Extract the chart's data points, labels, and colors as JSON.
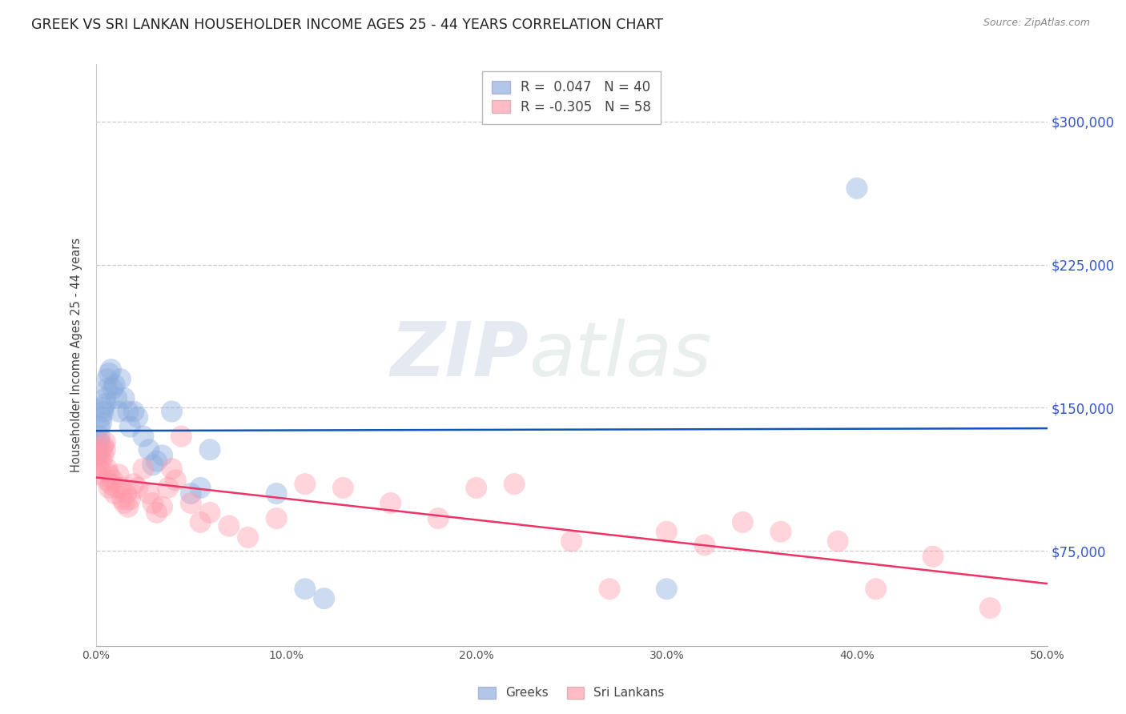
{
  "title": "GREEK VS SRI LANKAN HOUSEHOLDER INCOME AGES 25 - 44 YEARS CORRELATION CHART",
  "source": "Source: ZipAtlas.com",
  "ylabel": "Householder Income Ages 25 - 44 years",
  "xmin": 0.0,
  "xmax": 0.5,
  "ymin": 25000,
  "ymax": 330000,
  "yticks": [
    75000,
    150000,
    225000,
    300000
  ],
  "ytick_labels": [
    "$75,000",
    "$150,000",
    "$225,000",
    "$300,000"
  ],
  "xtick_positions": [
    0.0,
    0.1,
    0.2,
    0.3,
    0.4,
    0.5
  ],
  "xtick_labels": [
    "0.0%",
    "10.0%",
    "20.0%",
    "30.0%",
    "40.0%",
    "50.0%"
  ],
  "background_color": "#ffffff",
  "grid_color": "#cccccc",
  "legend_r1": "R =  0.047   N = 40",
  "legend_r2": "R = -0.305   N = 58",
  "greek_color": "#88aadd",
  "sri_lankan_color": "#ff99aa",
  "blue_line_color": "#1155bb",
  "pink_line_color": "#ee3366",
  "greek_x": [
    0.001,
    0.001,
    0.001,
    0.002,
    0.002,
    0.002,
    0.003,
    0.003,
    0.004,
    0.004,
    0.005,
    0.005,
    0.006,
    0.006,
    0.007,
    0.008,
    0.009,
    0.01,
    0.011,
    0.012,
    0.013,
    0.015,
    0.017,
    0.018,
    0.02,
    0.022,
    0.025,
    0.028,
    0.03,
    0.032,
    0.035,
    0.04,
    0.05,
    0.055,
    0.06,
    0.095,
    0.11,
    0.12,
    0.3,
    0.4
  ],
  "greek_y": [
    130000,
    128000,
    125000,
    135000,
    140000,
    132000,
    145000,
    142000,
    148000,
    150000,
    155000,
    152000,
    160000,
    165000,
    168000,
    170000,
    160000,
    162000,
    155000,
    148000,
    165000,
    155000,
    148000,
    140000,
    148000,
    145000,
    135000,
    128000,
    120000,
    122000,
    125000,
    148000,
    105000,
    108000,
    128000,
    105000,
    55000,
    50000,
    55000,
    265000
  ],
  "sri_lankan_x": [
    0.001,
    0.001,
    0.002,
    0.002,
    0.003,
    0.003,
    0.004,
    0.004,
    0.005,
    0.005,
    0.006,
    0.006,
    0.007,
    0.007,
    0.008,
    0.009,
    0.01,
    0.011,
    0.012,
    0.013,
    0.014,
    0.015,
    0.016,
    0.017,
    0.018,
    0.02,
    0.022,
    0.025,
    0.028,
    0.03,
    0.032,
    0.035,
    0.038,
    0.04,
    0.042,
    0.045,
    0.05,
    0.055,
    0.06,
    0.07,
    0.08,
    0.095,
    0.11,
    0.13,
    0.155,
    0.18,
    0.2,
    0.22,
    0.25,
    0.27,
    0.3,
    0.32,
    0.34,
    0.36,
    0.39,
    0.41,
    0.44,
    0.47
  ],
  "sri_lankan_y": [
    120000,
    115000,
    125000,
    118000,
    128000,
    122000,
    130000,
    125000,
    132000,
    128000,
    118000,
    112000,
    115000,
    108000,
    110000,
    112000,
    105000,
    108000,
    115000,
    108000,
    102000,
    100000,
    105000,
    98000,
    102000,
    110000,
    108000,
    118000,
    105000,
    100000,
    95000,
    98000,
    108000,
    118000,
    112000,
    135000,
    100000,
    90000,
    95000,
    88000,
    82000,
    92000,
    110000,
    108000,
    100000,
    92000,
    108000,
    110000,
    80000,
    55000,
    85000,
    78000,
    90000,
    85000,
    80000,
    55000,
    72000,
    45000
  ]
}
